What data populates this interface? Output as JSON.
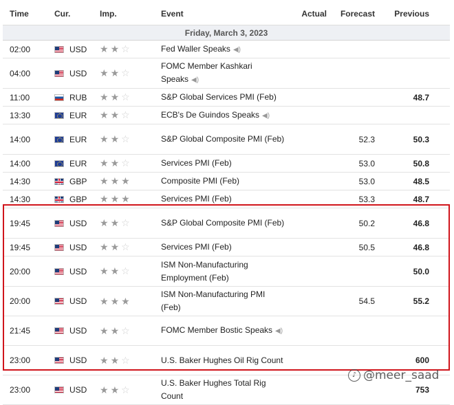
{
  "header": {
    "time": "Time",
    "cur": "Cur.",
    "imp": "Imp.",
    "event": "Event",
    "actual": "Actual",
    "forecast": "Forecast",
    "previous": "Previous"
  },
  "day_label": "Friday, March 3, 2023",
  "rows": [
    {
      "time": "02:00",
      "cur": "USD",
      "flag": "us",
      "imp": 2,
      "event": "Fed Waller Speaks",
      "speech": true,
      "actual": "",
      "forecast": "",
      "previous": "",
      "h": 26
    },
    {
      "time": "04:00",
      "cur": "USD",
      "flag": "us",
      "imp": 2,
      "event": "FOMC Member Kashkari Speaks",
      "speech": true,
      "actual": "",
      "forecast": "",
      "previous": "",
      "h": 44
    },
    {
      "time": "11:00",
      "cur": "RUB",
      "flag": "ru",
      "imp": 2,
      "event": "S&P Global Services PMI (Feb)",
      "speech": false,
      "actual": "",
      "forecast": "",
      "previous": "48.7",
      "h": 26
    },
    {
      "time": "13:30",
      "cur": "EUR",
      "flag": "eu",
      "imp": 2,
      "event": "ECB's De Guindos Speaks",
      "speech": true,
      "actual": "",
      "forecast": "",
      "previous": "",
      "h": 26
    },
    {
      "time": "14:00",
      "cur": "EUR",
      "flag": "eu",
      "imp": 2,
      "event": "S&P Global Composite PMI (Feb)",
      "speech": false,
      "actual": "",
      "forecast": "52.3",
      "previous": "50.3",
      "h": 44
    },
    {
      "time": "14:00",
      "cur": "EUR",
      "flag": "eu",
      "imp": 2,
      "event": "Services PMI (Feb)",
      "speech": false,
      "actual": "",
      "forecast": "53.0",
      "previous": "50.8",
      "h": 26
    },
    {
      "time": "14:30",
      "cur": "GBP",
      "flag": "gb",
      "imp": 3,
      "event": "Composite PMI (Feb)",
      "speech": false,
      "actual": "",
      "forecast": "53.0",
      "previous": "48.5",
      "h": 26
    },
    {
      "time": "14:30",
      "cur": "GBP",
      "flag": "gb",
      "imp": 3,
      "event": "Services PMI (Feb)",
      "speech": false,
      "actual": "",
      "forecast": "53.3",
      "previous": "48.7",
      "h": 26
    },
    {
      "time": "19:45",
      "cur": "USD",
      "flag": "us",
      "imp": 2,
      "event": "S&P Global Composite PMI (Feb)",
      "speech": false,
      "actual": "",
      "forecast": "50.2",
      "previous": "46.8",
      "h": 44
    },
    {
      "time": "19:45",
      "cur": "USD",
      "flag": "us",
      "imp": 2,
      "event": "Services PMI (Feb)",
      "speech": false,
      "actual": "",
      "forecast": "50.5",
      "previous": "46.8",
      "h": 26
    },
    {
      "time": "20:00",
      "cur": "USD",
      "flag": "us",
      "imp": 2,
      "event": "ISM Non-Manufacturing Employment (Feb)",
      "speech": false,
      "actual": "",
      "forecast": "",
      "previous": "50.0",
      "h": 44
    },
    {
      "time": "20:00",
      "cur": "USD",
      "flag": "us",
      "imp": 3,
      "event": "ISM Non-Manufacturing PMI (Feb)",
      "speech": false,
      "actual": "",
      "forecast": "54.5",
      "previous": "55.2",
      "h": 43
    },
    {
      "time": "21:45",
      "cur": "USD",
      "flag": "us",
      "imp": 2,
      "event": "FOMC Member Bostic Speaks",
      "speech": true,
      "actual": "",
      "forecast": "",
      "previous": "",
      "h": 43
    },
    {
      "time": "23:00",
      "cur": "USD",
      "flag": "us",
      "imp": 2,
      "event": "U.S. Baker Hughes Oil Rig Count",
      "speech": false,
      "actual": "",
      "forecast": "",
      "previous": "600",
      "h": 43
    },
    {
      "time": "23:00",
      "cur": "USD",
      "flag": "us",
      "imp": 2,
      "event": "U.S. Baker Hughes Total Rig Count",
      "speech": false,
      "actual": "",
      "forecast": "",
      "previous": "753",
      "h": 43
    }
  ],
  "watermark": "@meer_saad",
  "colors": {
    "highlight": "#d0141b",
    "day_bg": "#eef0f4"
  }
}
